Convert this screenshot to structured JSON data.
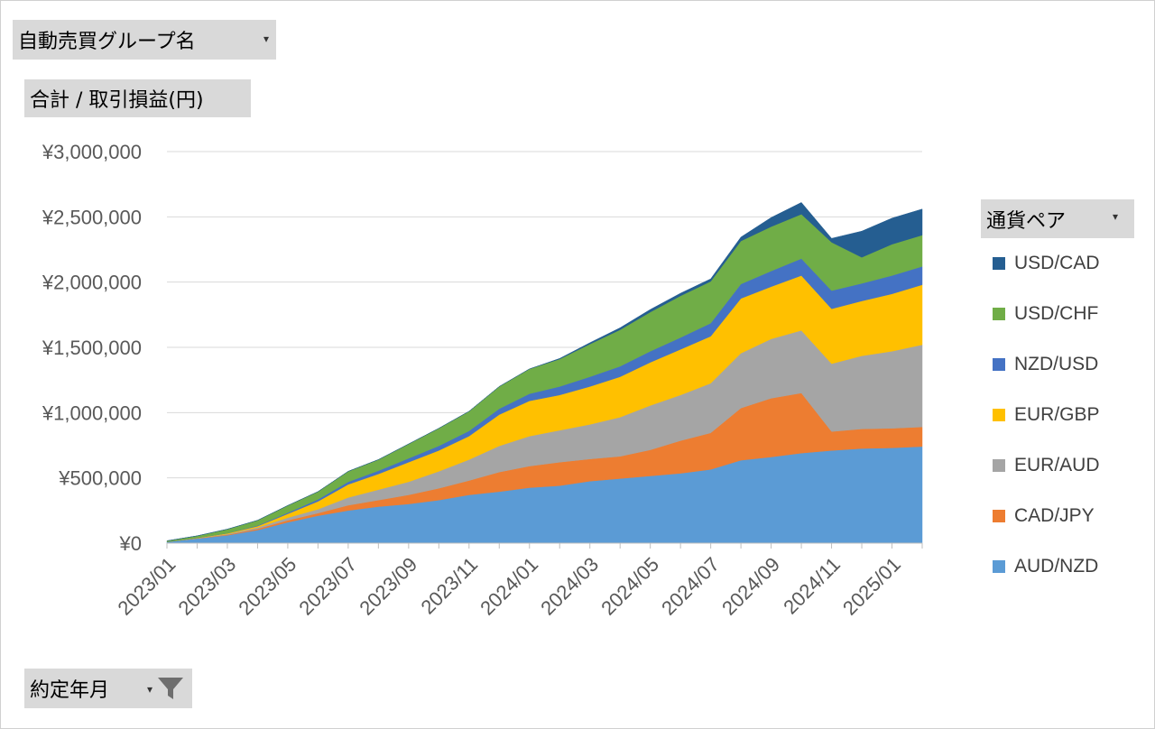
{
  "fields": {
    "group": "自動売買グループ名",
    "sum": "合計 / 取引損益(円)",
    "pair": "通貨ペア",
    "date": "約定年月"
  },
  "chart_data": {
    "type": "area",
    "stacked": true,
    "ylabel": "",
    "xlabel": "",
    "ylim": [
      0,
      3000000
    ],
    "y_ticks": [
      "¥0",
      "¥500,000",
      "¥1,000,000",
      "¥1,500,000",
      "¥2,000,000",
      "¥2,500,000",
      "¥3,000,000"
    ],
    "x": [
      "2023/01",
      "2023/02",
      "2023/03",
      "2023/04",
      "2023/05",
      "2023/06",
      "2023/07",
      "2023/08",
      "2023/09",
      "2023/10",
      "2023/11",
      "2023/12",
      "2024/01",
      "2024/02",
      "2024/03",
      "2024/04",
      "2024/05",
      "2024/06",
      "2024/07",
      "2024/08",
      "2024/09",
      "2024/10",
      "2024/11",
      "2024/12",
      "2025/01",
      "2025/02"
    ],
    "x_tick_labels": [
      "2023/01",
      "2023/03",
      "2023/05",
      "2023/07",
      "2023/09",
      "2023/11",
      "2024/01",
      "2024/03",
      "2024/05",
      "2024/07",
      "2024/09",
      "2024/11",
      "2025/01"
    ],
    "legend_position": "right",
    "series": [
      {
        "name": "AUD/NZD",
        "color": "#5b9bd5",
        "values": [
          10000,
          35000,
          60000,
          100000,
          160000,
          210000,
          250000,
          280000,
          300000,
          330000,
          370000,
          395000,
          425000,
          440000,
          475000,
          495000,
          515000,
          535000,
          565000,
          635000,
          660000,
          690000,
          710000,
          725000,
          730000,
          740000
        ]
      },
      {
        "name": "CAD/JPY",
        "color": "#ed7d31",
        "values": [
          0,
          2000,
          5000,
          10000,
          15000,
          20000,
          40000,
          50000,
          70000,
          90000,
          110000,
          150000,
          165000,
          180000,
          170000,
          170000,
          200000,
          250000,
          280000,
          400000,
          450000,
          460000,
          145000,
          150000,
          150000,
          150000
        ]
      },
      {
        "name": "EUR/AUD",
        "color": "#a5a5a5",
        "values": [
          0,
          1000,
          5000,
          10000,
          20000,
          30000,
          60000,
          80000,
          100000,
          130000,
          160000,
          200000,
          230000,
          245000,
          265000,
          300000,
          340000,
          350000,
          380000,
          420000,
          455000,
          480000,
          520000,
          560000,
          590000,
          630000
        ]
      },
      {
        "name": "EUR/GBP",
        "color": "#ffc000",
        "values": [
          0,
          2000,
          5000,
          10000,
          30000,
          60000,
          100000,
          120000,
          150000,
          160000,
          180000,
          240000,
          270000,
          270000,
          290000,
          310000,
          330000,
          350000,
          360000,
          420000,
          400000,
          420000,
          420000,
          420000,
          440000,
          460000
        ]
      },
      {
        "name": "NZD/USD",
        "color": "#4472c4",
        "values": [
          0,
          1000,
          2000,
          5000,
          8000,
          15000,
          20000,
          25000,
          30000,
          35000,
          40000,
          45000,
          55000,
          65000,
          75000,
          80000,
          85000,
          90000,
          100000,
          110000,
          120000,
          130000,
          140000,
          135000,
          140000,
          140000
        ]
      },
      {
        "name": "USD/CHF",
        "color": "#70ad47",
        "values": [
          8000,
          15000,
          30000,
          40000,
          55000,
          60000,
          80000,
          85000,
          110000,
          135000,
          150000,
          170000,
          190000,
          210000,
          250000,
          280000,
          300000,
          320000,
          320000,
          330000,
          340000,
          340000,
          370000,
          200000,
          240000,
          240000
        ]
      },
      {
        "name": "USD/CAD",
        "color": "#255e91",
        "values": [
          0,
          0,
          0,
          0,
          0,
          0,
          0,
          0,
          0,
          0,
          0,
          0,
          0,
          5000,
          10000,
          15000,
          20000,
          20000,
          20000,
          30000,
          70000,
          90000,
          30000,
          200000,
          200000,
          200000
        ]
      }
    ]
  }
}
